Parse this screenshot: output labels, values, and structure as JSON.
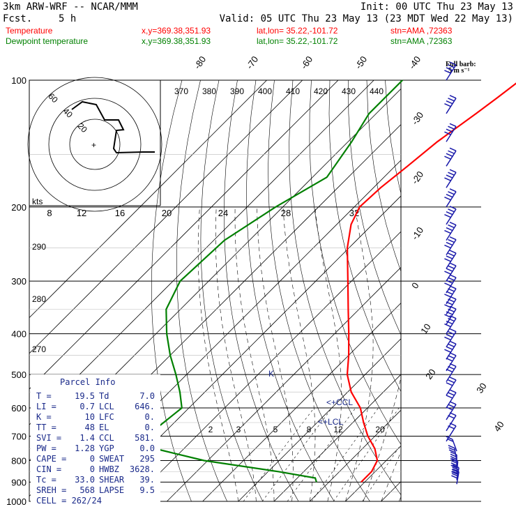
{
  "header": {
    "model": "3km ARW-WRF -- NCAR/MMM",
    "init": "Init: 00 UTC Thu 23 May 13",
    "fcst_label": "Fcst.",
    "fcst_value": "5 h",
    "valid": "Valid: 05 UTC Thu 23 May 13 (23 MDT Wed 22 May 13)",
    "temp_line": {
      "label": "Temperature",
      "xy": "x,y=369.38,351.93",
      "latlon": "lat,lon= 35.22,-101.72",
      "stn": "stn=AMA ,72363",
      "color": "#ff0000"
    },
    "dew_line": {
      "label": "Dewpoint temperature",
      "xy": "x,y=369.38,351.93",
      "latlon": "lat,lon= 35.22,-101.72",
      "stn": "stn=AMA ,72363",
      "color": "#008000"
    }
  },
  "barb_legend": {
    "line1": "Full barb:",
    "line2": "5 m s⁻¹"
  },
  "hodograph": {
    "units_label": "kts",
    "ring_labels": [
      "20",
      "40",
      "60"
    ]
  },
  "parcel_info": {
    "title": "Parcel Info",
    "rows": [
      {
        "l1": "T",
        "v1": "19.5",
        "l2": "Td",
        "v2": "7.0"
      },
      {
        "l1": "LI",
        "v1": "0.7",
        "l2": "LCL",
        "v2": "646."
      },
      {
        "l1": "K",
        "v1": "10",
        "l2": "LFC",
        "v2": "0."
      },
      {
        "l1": "TT",
        "v1": "48",
        "l2": "EL",
        "v2": "0."
      },
      {
        "l1": "SVI",
        "v1": "1.4",
        "l2": "CCL",
        "v2": "581."
      },
      {
        "l1": "PW",
        "v1": "1.28",
        "l2": "YGP",
        "v2": "0.0"
      },
      {
        "l1": "CAPE",
        "v1": "0",
        "l2": "SWEAT",
        "v2": "295"
      },
      {
        "l1": "CIN",
        "v1": "0",
        "l2": "HWBZ",
        "v2": "3628."
      },
      {
        "l1": "Tc",
        "v1": "33.0",
        "l2": "SHEAR",
        "v2": "39."
      },
      {
        "l1": "SREH",
        "v1": "568",
        "l2": "LAPSE",
        "v2": "9.5"
      }
    ],
    "cell": "CELL = 262/24"
  },
  "annotations": {
    "ccl": "<+CCL",
    "lcl": "<+LCL",
    "k_marker": "K"
  },
  "chart_data": {
    "type": "skew-t",
    "pressure_levels": [
      100,
      200,
      300,
      400,
      500,
      600,
      700,
      800,
      900,
      1000
    ],
    "y_axis_scale": "log pressure",
    "isotherm_labels_top": [
      -80,
      -70,
      -60,
      -50,
      -40
    ],
    "isotherm_labels_right": [
      -30,
      -20,
      -10,
      0,
      10,
      20,
      30,
      40
    ],
    "theta_e_labels": [
      370,
      380,
      390,
      400,
      410,
      420,
      430,
      440
    ],
    "mixing_ratio_labels": [
      2,
      3,
      5,
      8,
      12,
      20
    ],
    "theta_labels_left": [
      290,
      280,
      270
    ],
    "hodo_speed_labels": [
      8,
      12,
      16,
      20,
      24,
      28,
      32
    ],
    "series": [
      {
        "name": "Temperature",
        "color": "#ff0000",
        "points": [
          [
            100,
            -49
          ],
          [
            110,
            -50.5
          ],
          [
            120,
            -52
          ],
          [
            140,
            -55
          ],
          [
            160,
            -56.5
          ],
          [
            180,
            -58
          ],
          [
            200,
            -58.5
          ],
          [
            220,
            -56
          ],
          [
            250,
            -50.5
          ],
          [
            300,
            -41
          ],
          [
            350,
            -33
          ],
          [
            400,
            -26
          ],
          [
            450,
            -20
          ],
          [
            500,
            -15
          ],
          [
            550,
            -9
          ],
          [
            600,
            -2
          ],
          [
            650,
            3
          ],
          [
            700,
            8
          ],
          [
            750,
            13.5
          ],
          [
            800,
            17.5
          ],
          [
            850,
            19
          ],
          [
            900,
            19
          ]
        ]
      },
      {
        "name": "Dewpoint temperature",
        "color": "#008000",
        "points": [
          [
            100,
            -82
          ],
          [
            120,
            -82
          ],
          [
            140,
            -79
          ],
          [
            170,
            -76
          ],
          [
            200,
            -82
          ],
          [
            240,
            -87
          ],
          [
            300,
            -88
          ],
          [
            350,
            -84
          ],
          [
            400,
            -77
          ],
          [
            450,
            -70
          ],
          [
            500,
            -63
          ],
          [
            550,
            -57
          ],
          [
            600,
            -52
          ],
          [
            650,
            -53
          ],
          [
            700,
            -54
          ],
          [
            750,
            -48
          ],
          [
            800,
            -31
          ],
          [
            850,
            -7
          ],
          [
            880,
            5
          ],
          [
            900,
            6.5
          ]
        ]
      }
    ],
    "wind_barbs": [
      {
        "p": 100,
        "dir": 250,
        "spd": 25
      },
      {
        "p": 120,
        "dir": 250,
        "spd": 25
      },
      {
        "p": 140,
        "dir": 250,
        "spd": 25
      },
      {
        "p": 160,
        "dir": 250,
        "spd": 25
      },
      {
        "p": 180,
        "dir": 250,
        "spd": 25
      },
      {
        "p": 200,
        "dir": 250,
        "spd": 25
      },
      {
        "p": 220,
        "dir": 250,
        "spd": 25
      },
      {
        "p": 240,
        "dir": 250,
        "spd": 25
      },
      {
        "p": 260,
        "dir": 250,
        "spd": 25
      },
      {
        "p": 280,
        "dir": 250,
        "spd": 25
      },
      {
        "p": 300,
        "dir": 250,
        "spd": 25
      },
      {
        "p": 320,
        "dir": 250,
        "spd": 25
      },
      {
        "p": 340,
        "dir": 250,
        "spd": 25
      },
      {
        "p": 360,
        "dir": 250,
        "spd": 20
      },
      {
        "p": 380,
        "dir": 250,
        "spd": 20
      },
      {
        "p": 400,
        "dir": 250,
        "spd": 20
      },
      {
        "p": 430,
        "dir": 250,
        "spd": 20
      },
      {
        "p": 460,
        "dir": 250,
        "spd": 20
      },
      {
        "p": 490,
        "dir": 250,
        "spd": 15
      },
      {
        "p": 520,
        "dir": 250,
        "spd": 15
      },
      {
        "p": 560,
        "dir": 250,
        "spd": 15
      },
      {
        "p": 600,
        "dir": 250,
        "spd": 15
      },
      {
        "p": 640,
        "dir": 250,
        "spd": 15
      },
      {
        "p": 680,
        "dir": 250,
        "spd": 10
      },
      {
        "p": 720,
        "dir": 250,
        "spd": 10
      },
      {
        "p": 760,
        "dir": 200,
        "spd": 10
      },
      {
        "p": 800,
        "dir": 190,
        "spd": 15
      },
      {
        "p": 830,
        "dir": 180,
        "spd": 20
      },
      {
        "p": 860,
        "dir": 175,
        "spd": 20
      },
      {
        "p": 890,
        "dir": 170,
        "spd": 25
      },
      {
        "p": 910,
        "dir": 170,
        "spd": 25
      }
    ]
  }
}
